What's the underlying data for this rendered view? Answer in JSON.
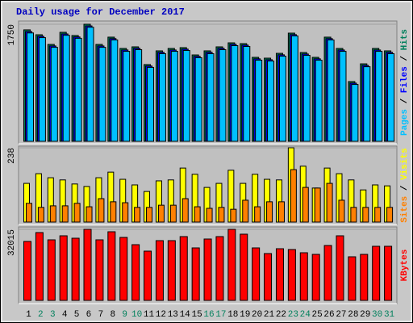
{
  "chart_data": [
    {
      "type": "bar",
      "title": "Daily usage for December 2017",
      "ylim": [
        0,
        1750
      ],
      "yticks": [
        1750
      ],
      "legend_separator": " / ",
      "series": [
        {
          "name": "Hits",
          "color": "#00805c",
          "values": [
            1666,
            1593,
            1448,
            1629,
            1581,
            1750,
            1448,
            1557,
            1388,
            1412,
            1147,
            1352,
            1388,
            1400,
            1291,
            1352,
            1412,
            1472,
            1460,
            1255,
            1243,
            1315,
            1617,
            1327,
            1255,
            1557,
            1388,
            893,
            1158,
            1388,
            1352
          ]
        },
        {
          "name": "Files",
          "color": "#0000ff",
          "values": [
            1640,
            1570,
            1425,
            1605,
            1560,
            1725,
            1425,
            1535,
            1365,
            1390,
            1125,
            1330,
            1365,
            1378,
            1270,
            1330,
            1390,
            1450,
            1438,
            1233,
            1220,
            1293,
            1595,
            1305,
            1233,
            1535,
            1365,
            870,
            1135,
            1365,
            1330
          ]
        },
        {
          "name": "Pages",
          "color": "#00c0ff",
          "values": [
            1620,
            1550,
            1405,
            1585,
            1540,
            1705,
            1405,
            1515,
            1345,
            1370,
            1105,
            1310,
            1345,
            1358,
            1250,
            1310,
            1370,
            1430,
            1418,
            1213,
            1200,
            1273,
            1575,
            1285,
            1213,
            1515,
            1345,
            850,
            1115,
            1345,
            1310
          ]
        }
      ]
    },
    {
      "type": "bar",
      "ylim": [
        0,
        238
      ],
      "yticks": [
        238
      ],
      "legend_separator": " / ",
      "series": [
        {
          "name": "Visits",
          "color": "#ffff00",
          "values": [
            124,
            155,
            142,
            135,
            122,
            114,
            142,
            160,
            137,
            119,
            98,
            132,
            135,
            173,
            153,
            111,
            124,
            166,
            124,
            153,
            137,
            135,
            238,
            179,
            109,
            173,
            155,
            135,
            103,
            119,
            116
          ]
        },
        {
          "name": "Sites",
          "color": "#ff8000",
          "values": [
            60,
            47,
            52,
            52,
            60,
            49,
            75,
            65,
            62,
            47,
            47,
            54,
            54,
            75,
            49,
            44,
            47,
            41,
            70,
            49,
            65,
            65,
            168,
            111,
            109,
            124,
            70,
            47,
            47,
            47,
            47
          ]
        }
      ]
    },
    {
      "type": "bar",
      "ylim": [
        0,
        32015
      ],
      "yticks": [
        32015
      ],
      "series": [
        {
          "name": "KBytes",
          "color": "#ff0000",
          "values": [
            26558,
            30559,
            27285,
            29104,
            28013,
            32015,
            27285,
            30923,
            28376,
            25102,
            22192,
            26921,
            26921,
            28740,
            23647,
            27649,
            28740,
            32015,
            29832,
            23647,
            21100,
            23283,
            22919,
            21464,
            20736,
            24738,
            29104,
            19645,
            20736,
            24375,
            24375
          ]
        }
      ],
      "categories": [
        "1",
        "2",
        "3",
        "4",
        "5",
        "6",
        "7",
        "8",
        "9",
        "10",
        "11",
        "12",
        "13",
        "14",
        "15",
        "16",
        "17",
        "18",
        "19",
        "20",
        "21",
        "22",
        "23",
        "24",
        "25",
        "26",
        "27",
        "28",
        "29",
        "30",
        "31"
      ],
      "category_colors": [
        "#000000",
        "#00805c",
        "#00805c",
        "#000000",
        "#000000",
        "#000000",
        "#000000",
        "#000000",
        "#00805c",
        "#00805c",
        "#000000",
        "#000000",
        "#000000",
        "#000000",
        "#000000",
        "#00805c",
        "#00805c",
        "#000000",
        "#000000",
        "#000000",
        "#000000",
        "#000000",
        "#00805c",
        "#00805c",
        "#000000",
        "#000000",
        "#000000",
        "#000000",
        "#000000",
        "#00805c",
        "#00805c"
      ]
    }
  ]
}
